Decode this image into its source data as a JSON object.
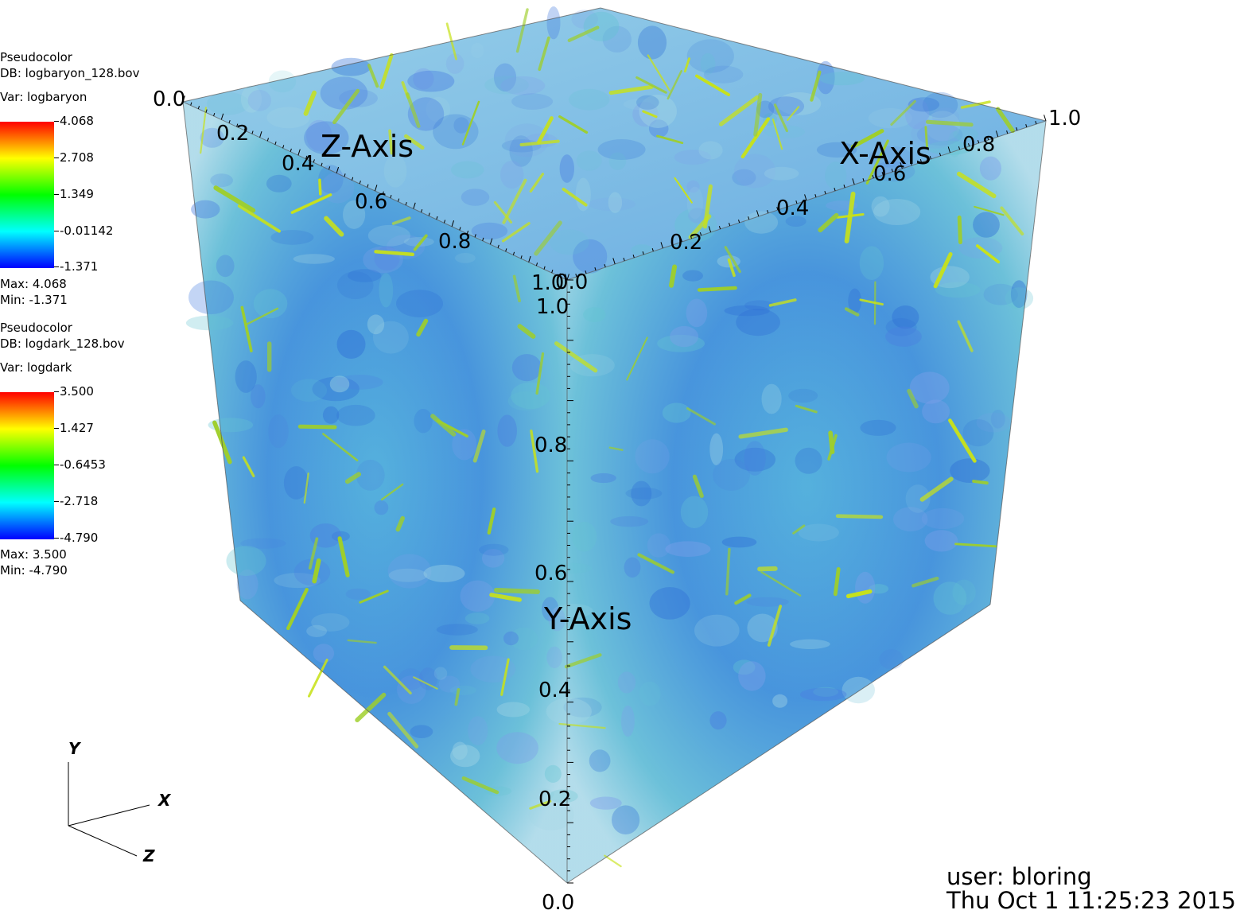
{
  "plots": [
    {
      "type": "Pseudocolor",
      "db": "DB: logbaryon_128.bov",
      "var": "Var: logbaryon",
      "ticks": [
        "4.068",
        "2.708",
        "1.349",
        "-0.01142",
        "-1.371"
      ],
      "max": "Max:  4.068",
      "min": "Min: -1.371"
    },
    {
      "type": "Pseudocolor",
      "db": "DB: logdark_128.bov",
      "var": "Var: logdark",
      "ticks": [
        "3.500",
        "1.427",
        "-0.6453",
        "-2.718",
        "-4.790"
      ],
      "max": "Max:  3.500",
      "min": "Min: -4.790"
    }
  ],
  "axes": {
    "z_title": "Z-Axis",
    "x_title": "X-Axis",
    "y_title": "Y-Axis",
    "z_ticks": [
      "0.0",
      "0.2",
      "0.4",
      "0.6",
      "0.8",
      "1.0"
    ],
    "x_ticks": [
      "0.0",
      "0.2",
      "0.4",
      "0.6",
      "0.8",
      "1.0"
    ],
    "y_ticks": [
      "0.0",
      "0.2",
      "0.4",
      "0.6",
      "0.8",
      "1.0"
    ]
  },
  "triad": {
    "x": "X",
    "y": "Y",
    "z": "Z"
  },
  "footer": {
    "user": "user: bloring",
    "date": "Thu Oct  1 11:25:23 2015"
  },
  "colors": {
    "background": "#ffffff",
    "volume_blue": "#2f86d8",
    "volume_cyan": "#5cc8d6",
    "filament_yellow": "#c8e21a",
    "colormap": [
      "#0000ff",
      "#00ffff",
      "#00ff00",
      "#ffff00",
      "#ff0000"
    ]
  }
}
